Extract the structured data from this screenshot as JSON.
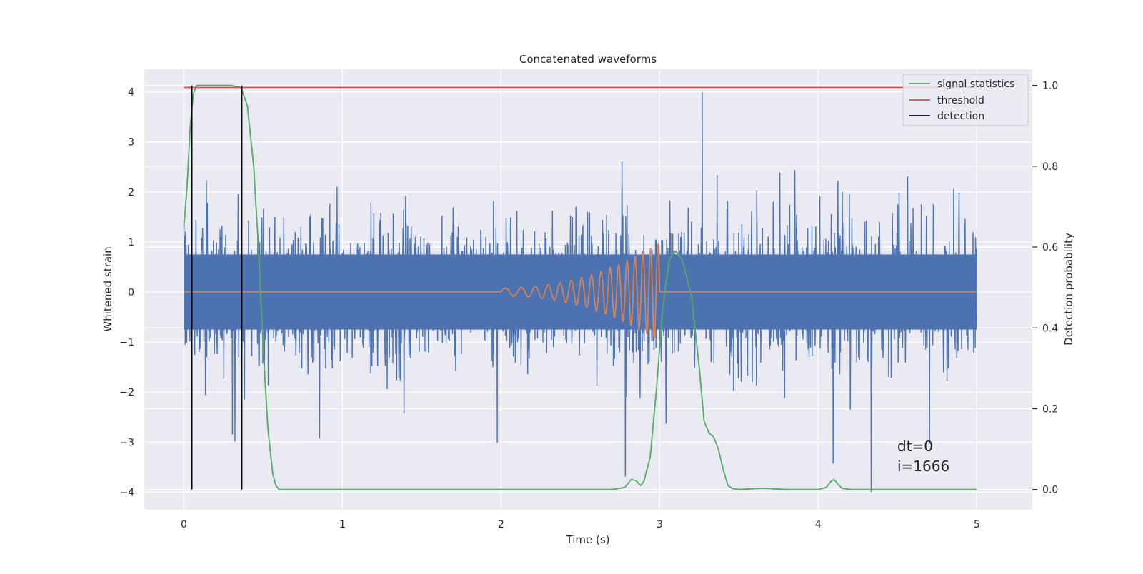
{
  "chart_data": {
    "type": "line",
    "title": "Concatenated waveforms",
    "xlabel": "Time (s)",
    "ylabel_left": "Whitened strain",
    "ylabel_right": "Detection probability",
    "xlim": [
      -0.25,
      5.35
    ],
    "ylim_left": [
      -4.35,
      4.45
    ],
    "ylim_right": [
      -0.05,
      1.04
    ],
    "x_ticks": [
      0,
      1,
      2,
      3,
      4,
      5
    ],
    "x_tick_labels": [
      "0",
      "1",
      "2",
      "3",
      "4",
      "5"
    ],
    "y_left_ticks": [
      4,
      3,
      2,
      1,
      0,
      -1,
      -2,
      -3,
      -4
    ],
    "y_left_tick_labels": [
      "4",
      "3",
      "2",
      "1",
      "0",
      "−1",
      "−2",
      "−3",
      "−4"
    ],
    "y_right_ticks": [
      1.0,
      0.8,
      0.6,
      0.4,
      0.2,
      0.0
    ],
    "y_right_tick_labels": [
      "1.0",
      "0.8",
      "0.6",
      "0.4",
      "0.2",
      "0.0"
    ],
    "grid": true,
    "legend_position": "top-right",
    "legend": [
      {
        "label": "signal statistics",
        "color": "#55a868"
      },
      {
        "label": "threshold",
        "color": "#c44e52"
      },
      {
        "label": "detection",
        "color": "#000000"
      }
    ],
    "series": [
      {
        "name": "whitened strain (noisy)",
        "axis": "left",
        "color": "#4c72b0",
        "x_range": [
          0,
          5
        ],
        "core_amplitude": 0.75,
        "peak_range": [
          -4.0,
          4.0
        ]
      },
      {
        "name": "injected waveform",
        "axis": "left",
        "color": "#dd8452",
        "x_range": [
          0,
          5
        ],
        "chirp_start": 2.0,
        "chirp_end": 3.0,
        "chirp_peak_amplitude": 1.0
      },
      {
        "name": "signal statistics",
        "axis": "right",
        "color": "#55a868",
        "points": [
          [
            0.0,
            0.65
          ],
          [
            0.02,
            0.75
          ],
          [
            0.04,
            0.9
          ],
          [
            0.06,
            0.98
          ],
          [
            0.08,
            1.0
          ],
          [
            0.12,
            1.0
          ],
          [
            0.3,
            1.0
          ],
          [
            0.36,
            0.995
          ],
          [
            0.4,
            0.95
          ],
          [
            0.44,
            0.8
          ],
          [
            0.47,
            0.6
          ],
          [
            0.5,
            0.35
          ],
          [
            0.53,
            0.15
          ],
          [
            0.56,
            0.04
          ],
          [
            0.58,
            0.01
          ],
          [
            0.6,
            0.0
          ],
          [
            2.7,
            0.0
          ],
          [
            2.78,
            0.005
          ],
          [
            2.82,
            0.025
          ],
          [
            2.85,
            0.022
          ],
          [
            2.88,
            0.01
          ],
          [
            2.9,
            0.02
          ],
          [
            2.94,
            0.08
          ],
          [
            2.98,
            0.25
          ],
          [
            3.02,
            0.45
          ],
          [
            3.06,
            0.57
          ],
          [
            3.1,
            0.59
          ],
          [
            3.14,
            0.57
          ],
          [
            3.2,
            0.48
          ],
          [
            3.25,
            0.3
          ],
          [
            3.28,
            0.17
          ],
          [
            3.31,
            0.14
          ],
          [
            3.34,
            0.13
          ],
          [
            3.37,
            0.1
          ],
          [
            3.4,
            0.05
          ],
          [
            3.43,
            0.01
          ],
          [
            3.46,
            0.002
          ],
          [
            3.5,
            0.0
          ],
          [
            3.65,
            0.003
          ],
          [
            3.8,
            0.0
          ],
          [
            4.0,
            0.0
          ],
          [
            4.05,
            0.005
          ],
          [
            4.08,
            0.02
          ],
          [
            4.1,
            0.025
          ],
          [
            4.12,
            0.015
          ],
          [
            4.15,
            0.003
          ],
          [
            4.2,
            0.0
          ],
          [
            5.0,
            0.0
          ]
        ]
      },
      {
        "name": "threshold",
        "axis": "right",
        "color": "#c44e52",
        "x_range": [
          0,
          5
        ],
        "value": 0.995
      },
      {
        "name": "detection",
        "axis": "right",
        "color": "#000000",
        "x": [
          0.05,
          0.365
        ],
        "y_range": [
          0.0,
          1.0
        ]
      }
    ],
    "annotations": [
      {
        "text": "dt=0",
        "x": 4.5,
        "y": -3.0
      },
      {
        "text": "i=1666",
        "x": 4.5,
        "y": -3.4
      }
    ]
  }
}
